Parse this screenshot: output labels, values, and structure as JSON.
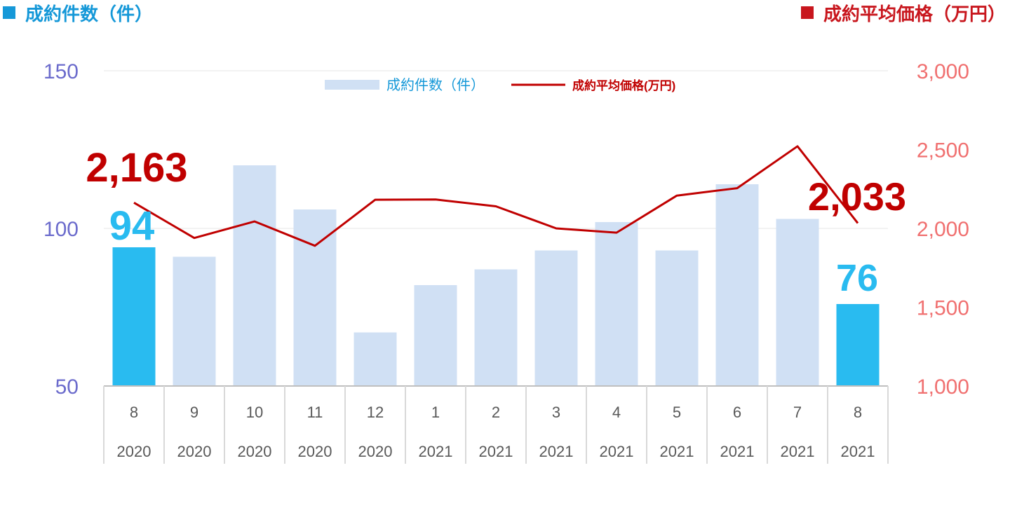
{
  "header": {
    "left_label": "成約件数（件）",
    "right_label": "成約平均価格（万円）",
    "left_color": "#1598d8",
    "right_color": "#c8161d"
  },
  "chart_data": {
    "type": "bar",
    "categories": [
      {
        "month": "8",
        "year": "2020"
      },
      {
        "month": "9",
        "year": "2020"
      },
      {
        "month": "10",
        "year": "2020"
      },
      {
        "month": "11",
        "year": "2020"
      },
      {
        "month": "12",
        "year": "2020"
      },
      {
        "month": "1",
        "year": "2021"
      },
      {
        "month": "2",
        "year": "2021"
      },
      {
        "month": "3",
        "year": "2021"
      },
      {
        "month": "4",
        "year": "2021"
      },
      {
        "month": "5",
        "year": "2021"
      },
      {
        "month": "6",
        "year": "2021"
      },
      {
        "month": "7",
        "year": "2021"
      },
      {
        "month": "8",
        "year": "2021"
      }
    ],
    "series": [
      {
        "name": "成約件数(件)",
        "type": "bar",
        "axis": "left",
        "values": [
          94,
          91,
          120,
          106,
          67,
          82,
          87,
          93,
          102,
          93,
          114,
          103,
          76
        ],
        "color": "#d0e0f4",
        "highlight_color": "#29bbf0",
        "highlight_indices": [
          0,
          12
        ]
      },
      {
        "name": "成約平均価格(万円)",
        "type": "line",
        "axis": "right",
        "values": [
          2163,
          1939,
          2044,
          1890,
          2182,
          2183,
          2140,
          2000,
          1973,
          2208,
          2255,
          2521,
          2033
        ],
        "color": "#c00000"
      }
    ],
    "left_axis": {
      "ylim": [
        50,
        150
      ],
      "ticks": [
        50,
        100,
        150
      ],
      "tick_labels": [
        "50",
        "100",
        "150"
      ],
      "color": "#6b6bcc"
    },
    "right_axis": {
      "ylim": [
        1000,
        3000
      ],
      "ticks": [
        1000,
        1500,
        2000,
        2500,
        3000
      ],
      "tick_labels": [
        "1,000",
        "1,500",
        "2,000",
        "2,500",
        "3,000"
      ],
      "color": "#f07070"
    },
    "data_labels": [
      {
        "series": 0,
        "index": 0,
        "text": "94",
        "color": "#29bbf0"
      },
      {
        "series": 0,
        "index": 12,
        "text": "76",
        "color": "#29bbf0"
      },
      {
        "series": 1,
        "index": 0,
        "text": "2,163",
        "color": "#c00000"
      },
      {
        "series": 1,
        "index": 12,
        "text": "2,033",
        "color": "#c00000"
      }
    ],
    "legend": {
      "placement": "top-center",
      "bar_label": "成約件数（件）",
      "line_label": "成約平均価格(万円)",
      "bar_label_color": "#1598d8",
      "line_label_color": "#c00000"
    },
    "grid": true
  }
}
